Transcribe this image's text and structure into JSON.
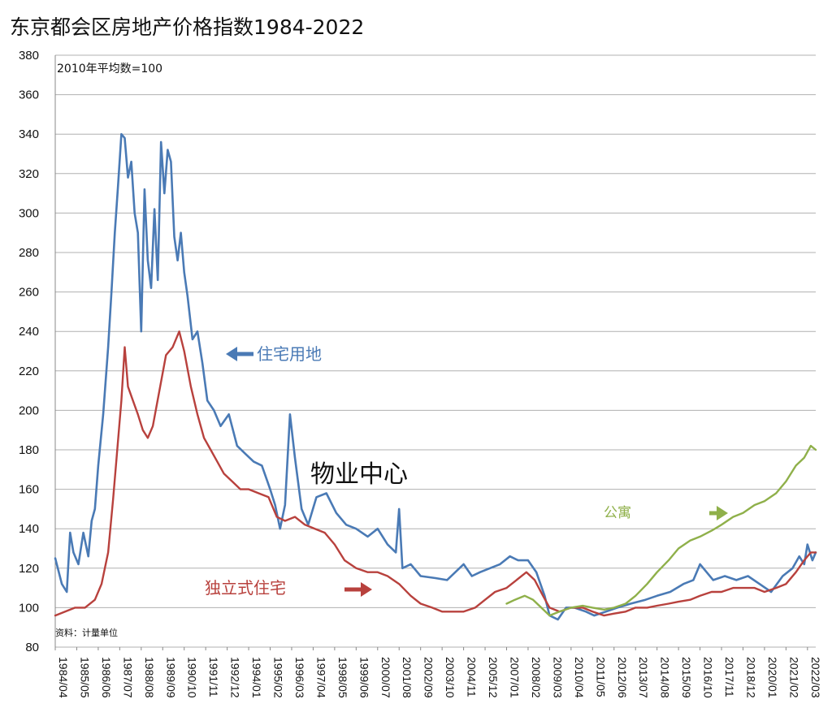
{
  "title": "东京都会区房地产价格指数1984-2022",
  "colors": {
    "residential_land": "#4a7ab5",
    "detached_house": "#b8413d",
    "apartment": "#8fb04a",
    "grid": "#b0b0b0"
  },
  "annotations": {
    "baseline_note": "2010年平均数=100",
    "source_note": "资料：计量单位",
    "watermark": "物业中心",
    "label_land": "住宅用地",
    "label_house": "独立式住宅",
    "label_apartment": "公寓"
  },
  "chart_data": {
    "type": "line",
    "title": "东京都会区房地产价格指数1984-2022",
    "xlabel": "",
    "ylabel": "",
    "ylim": [
      80,
      380
    ],
    "yticks": [
      80,
      100,
      120,
      140,
      160,
      180,
      200,
      220,
      240,
      260,
      280,
      300,
      320,
      340,
      360,
      380
    ],
    "xlim": [
      "1984/04",
      "2022/08"
    ],
    "xticks": [
      "1984/04",
      "1985/05",
      "1986/06",
      "1987/07",
      "1988/08",
      "1989/09",
      "1990/10",
      "1991/11",
      "1992/12",
      "1994/01",
      "1995/02",
      "1996/03",
      "1997/04",
      "1998/05",
      "1999/06",
      "2000/07",
      "2001/08",
      "2002/09",
      "2003/10",
      "2004/11",
      "2005/12",
      "2007/01",
      "2008/02",
      "2009/03",
      "2010/04",
      "2011/05",
      "2012/06",
      "2013/07",
      "2014/08",
      "2015/09",
      "2016/10",
      "2017/11",
      "2018/12",
      "2020/01",
      "2021/02",
      "2022/03"
    ],
    "grid": true,
    "series": [
      {
        "name": "住宅用地",
        "color": "#4a7ab5",
        "points": [
          [
            "1984/04",
            125
          ],
          [
            "1984/08",
            112
          ],
          [
            "1984/11",
            108
          ],
          [
            "1985/01",
            138
          ],
          [
            "1985/03",
            128
          ],
          [
            "1985/06",
            122
          ],
          [
            "1985/09",
            138
          ],
          [
            "1985/12",
            126
          ],
          [
            "1986/02",
            144
          ],
          [
            "1986/04",
            150
          ],
          [
            "1986/06",
            172
          ],
          [
            "1986/09",
            198
          ],
          [
            "1986/12",
            232
          ],
          [
            "1987/02",
            260
          ],
          [
            "1987/04",
            290
          ],
          [
            "1987/06",
            314
          ],
          [
            "1987/08",
            340
          ],
          [
            "1987/10",
            338
          ],
          [
            "1987/12",
            318
          ],
          [
            "1988/02",
            326
          ],
          [
            "1988/04",
            300
          ],
          [
            "1988/06",
            290
          ],
          [
            "1988/08",
            240
          ],
          [
            "1988/10",
            312
          ],
          [
            "1988/12",
            276
          ],
          [
            "1989/02",
            262
          ],
          [
            "1989/04",
            302
          ],
          [
            "1989/06",
            266
          ],
          [
            "1989/08",
            336
          ],
          [
            "1989/10",
            310
          ],
          [
            "1989/12",
            332
          ],
          [
            "1990/02",
            326
          ],
          [
            "1990/04",
            288
          ],
          [
            "1990/06",
            276
          ],
          [
            "1990/08",
            290
          ],
          [
            "1990/10",
            270
          ],
          [
            "1990/12",
            258
          ],
          [
            "1991/03",
            236
          ],
          [
            "1991/06",
            240
          ],
          [
            "1991/09",
            224
          ],
          [
            "1991/12",
            205
          ],
          [
            "1992/04",
            200
          ],
          [
            "1992/08",
            192
          ],
          [
            "1993/01",
            198
          ],
          [
            "1993/06",
            182
          ],
          [
            "1993/11",
            178
          ],
          [
            "1994/04",
            174
          ],
          [
            "1994/09",
            172
          ],
          [
            "1995/02",
            160
          ],
          [
            "1995/05",
            152
          ],
          [
            "1995/08",
            140
          ],
          [
            "1995/11",
            152
          ],
          [
            "1996/02",
            198
          ],
          [
            "1996/05",
            176
          ],
          [
            "1996/09",
            150
          ],
          [
            "1997/01",
            142
          ],
          [
            "1997/06",
            156
          ],
          [
            "1997/12",
            158
          ],
          [
            "1998/06",
            148
          ],
          [
            "1998/12",
            142
          ],
          [
            "1999/06",
            140
          ],
          [
            "2000/01",
            136
          ],
          [
            "2000/07",
            140
          ],
          [
            "2001/01",
            132
          ],
          [
            "2001/06",
            128
          ],
          [
            "2001/08",
            150
          ],
          [
            "2001/10",
            120
          ],
          [
            "2002/03",
            122
          ],
          [
            "2002/09",
            116
          ],
          [
            "2003/06",
            115
          ],
          [
            "2004/01",
            114
          ],
          [
            "2004/06",
            118
          ],
          [
            "2004/11",
            122
          ],
          [
            "2005/04",
            116
          ],
          [
            "2005/09",
            118
          ],
          [
            "2006/03",
            120
          ],
          [
            "2006/09",
            122
          ],
          [
            "2007/03",
            126
          ],
          [
            "2007/08",
            124
          ],
          [
            "2008/02",
            124
          ],
          [
            "2008/07",
            118
          ],
          [
            "2008/12",
            106
          ],
          [
            "2009/03",
            96
          ],
          [
            "2009/08",
            94
          ],
          [
            "2010/01",
            100
          ],
          [
            "2010/06",
            100
          ],
          [
            "2011/01",
            98
          ],
          [
            "2011/06",
            96
          ],
          [
            "2012/01",
            98
          ],
          [
            "2012/08",
            100
          ],
          [
            "2013/04",
            102
          ],
          [
            "2014/01",
            104
          ],
          [
            "2014/08",
            106
          ],
          [
            "2015/04",
            108
          ],
          [
            "2015/12",
            112
          ],
          [
            "2016/06",
            114
          ],
          [
            "2016/10",
            122
          ],
          [
            "2017/06",
            114
          ],
          [
            "2018/01",
            116
          ],
          [
            "2018/08",
            114
          ],
          [
            "2019/03",
            116
          ],
          [
            "2019/10",
            112
          ],
          [
            "2020/05",
            108
          ],
          [
            "2020/12",
            116
          ],
          [
            "2021/06",
            120
          ],
          [
            "2021/10",
            126
          ],
          [
            "2022/01",
            122
          ],
          [
            "2022/03",
            132
          ],
          [
            "2022/06",
            124
          ],
          [
            "2022/08",
            128
          ]
        ]
      },
      {
        "name": "独立式住宅",
        "color": "#b8413d",
        "points": [
          [
            "1984/04",
            96
          ],
          [
            "1984/10",
            98
          ],
          [
            "1985/04",
            100
          ],
          [
            "1985/10",
            100
          ],
          [
            "1986/04",
            104
          ],
          [
            "1986/08",
            112
          ],
          [
            "1986/12",
            128
          ],
          [
            "1987/03",
            155
          ],
          [
            "1987/05",
            175
          ],
          [
            "1987/08",
            205
          ],
          [
            "1987/10",
            232
          ],
          [
            "1987/12",
            212
          ],
          [
            "1988/03",
            205
          ],
          [
            "1988/06",
            198
          ],
          [
            "1988/09",
            190
          ],
          [
            "1988/12",
            186
          ],
          [
            "1989/03",
            192
          ],
          [
            "1989/07",
            210
          ],
          [
            "1989/11",
            228
          ],
          [
            "1990/03",
            232
          ],
          [
            "1990/07",
            240
          ],
          [
            "1990/10",
            230
          ],
          [
            "1991/02",
            212
          ],
          [
            "1991/06",
            198
          ],
          [
            "1991/10",
            186
          ],
          [
            "1992/02",
            180
          ],
          [
            "1992/06",
            174
          ],
          [
            "1992/10",
            168
          ],
          [
            "1993/03",
            164
          ],
          [
            "1993/08",
            160
          ],
          [
            "1994/01",
            160
          ],
          [
            "1994/07",
            158
          ],
          [
            "1995/01",
            156
          ],
          [
            "1995/06",
            146
          ],
          [
            "1995/11",
            144
          ],
          [
            "1996/05",
            146
          ],
          [
            "1996/11",
            142
          ],
          [
            "1997/05",
            140
          ],
          [
            "1997/11",
            138
          ],
          [
            "1998/05",
            132
          ],
          [
            "1998/11",
            124
          ],
          [
            "1999/06",
            120
          ],
          [
            "2000/01",
            118
          ],
          [
            "2000/07",
            118
          ],
          [
            "2001/01",
            116
          ],
          [
            "2001/08",
            112
          ],
          [
            "2002/03",
            106
          ],
          [
            "2002/09",
            102
          ],
          [
            "2003/04",
            100
          ],
          [
            "2003/10",
            98
          ],
          [
            "2004/05",
            98
          ],
          [
            "2004/11",
            98
          ],
          [
            "2005/06",
            100
          ],
          [
            "2005/12",
            104
          ],
          [
            "2006/06",
            108
          ],
          [
            "2007/01",
            110
          ],
          [
            "2007/07",
            114
          ],
          [
            "2008/01",
            118
          ],
          [
            "2008/06",
            114
          ],
          [
            "2008/11",
            106
          ],
          [
            "2009/03",
            100
          ],
          [
            "2009/09",
            98
          ],
          [
            "2010/04",
            100
          ],
          [
            "2010/11",
            100
          ],
          [
            "2011/05",
            98
          ],
          [
            "2011/12",
            96
          ],
          [
            "2012/06",
            97
          ],
          [
            "2013/01",
            98
          ],
          [
            "2013/07",
            100
          ],
          [
            "2014/02",
            100
          ],
          [
            "2014/08",
            101
          ],
          [
            "2015/03",
            102
          ],
          [
            "2015/09",
            103
          ],
          [
            "2016/04",
            104
          ],
          [
            "2016/10",
            106
          ],
          [
            "2017/05",
            108
          ],
          [
            "2017/11",
            108
          ],
          [
            "2018/06",
            110
          ],
          [
            "2018/12",
            110
          ],
          [
            "2019/07",
            110
          ],
          [
            "2020/01",
            108
          ],
          [
            "2020/08",
            110
          ],
          [
            "2021/02",
            112
          ],
          [
            "2021/08",
            118
          ],
          [
            "2022/01",
            124
          ],
          [
            "2022/05",
            128
          ],
          [
            "2022/08",
            128
          ]
        ]
      },
      {
        "name": "公寓",
        "color": "#8fb04a",
        "points": [
          [
            "2007/01",
            102
          ],
          [
            "2007/06",
            104
          ],
          [
            "2007/12",
            106
          ],
          [
            "2008/05",
            104
          ],
          [
            "2008/10",
            100
          ],
          [
            "2009/03",
            96
          ],
          [
            "2009/09",
            98
          ],
          [
            "2010/04",
            100
          ],
          [
            "2010/11",
            101
          ],
          [
            "2011/05",
            100
          ],
          [
            "2011/12",
            99
          ],
          [
            "2012/06",
            100
          ],
          [
            "2013/01",
            102
          ],
          [
            "2013/07",
            106
          ],
          [
            "2014/02",
            112
          ],
          [
            "2014/08",
            118
          ],
          [
            "2015/03",
            124
          ],
          [
            "2015/09",
            130
          ],
          [
            "2016/04",
            134
          ],
          [
            "2016/10",
            136
          ],
          [
            "2017/05",
            139
          ],
          [
            "2017/11",
            142
          ],
          [
            "2018/06",
            146
          ],
          [
            "2018/12",
            148
          ],
          [
            "2019/07",
            152
          ],
          [
            "2020/01",
            154
          ],
          [
            "2020/08",
            158
          ],
          [
            "2021/02",
            164
          ],
          [
            "2021/08",
            172
          ],
          [
            "2022/01",
            176
          ],
          [
            "2022/05",
            182
          ],
          [
            "2022/08",
            180
          ]
        ]
      }
    ]
  }
}
